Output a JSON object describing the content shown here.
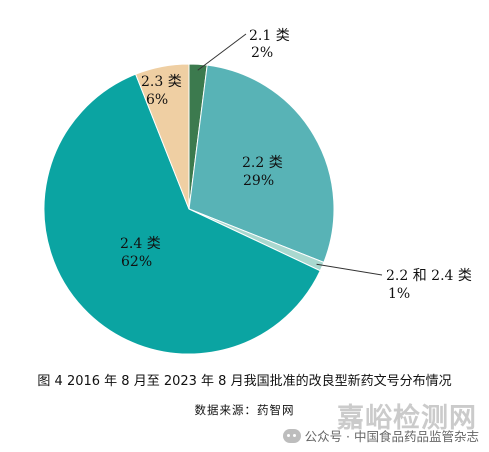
{
  "chart_data": {
    "type": "pie",
    "slices": [
      {
        "name": "2.1 类",
        "value": 2,
        "pct_label": "2%",
        "color": "#3c7a4e"
      },
      {
        "name": "2.2 类",
        "value": 29,
        "pct_label": "29%",
        "color": "#58b3b6"
      },
      {
        "name": "2.2 和 2.4 类",
        "value": 1,
        "pct_label": "1%",
        "color": "#a9d8cf"
      },
      {
        "name": "2.4 类",
        "value": 62,
        "pct_label": "62%",
        "color": "#0ba4a2"
      },
      {
        "name": "2.3 类",
        "value": 6,
        "pct_label": "6%",
        "color": "#efcfa3"
      }
    ]
  },
  "caption": "图 4 2016 年 8 月至 2023 年 8 月我国批准的改良型新药文号分布情况",
  "source": "数据来源：药智网",
  "watermark": {
    "big": "嘉峪检测网",
    "small": "公众号 · 中国食品药品监管杂志"
  }
}
